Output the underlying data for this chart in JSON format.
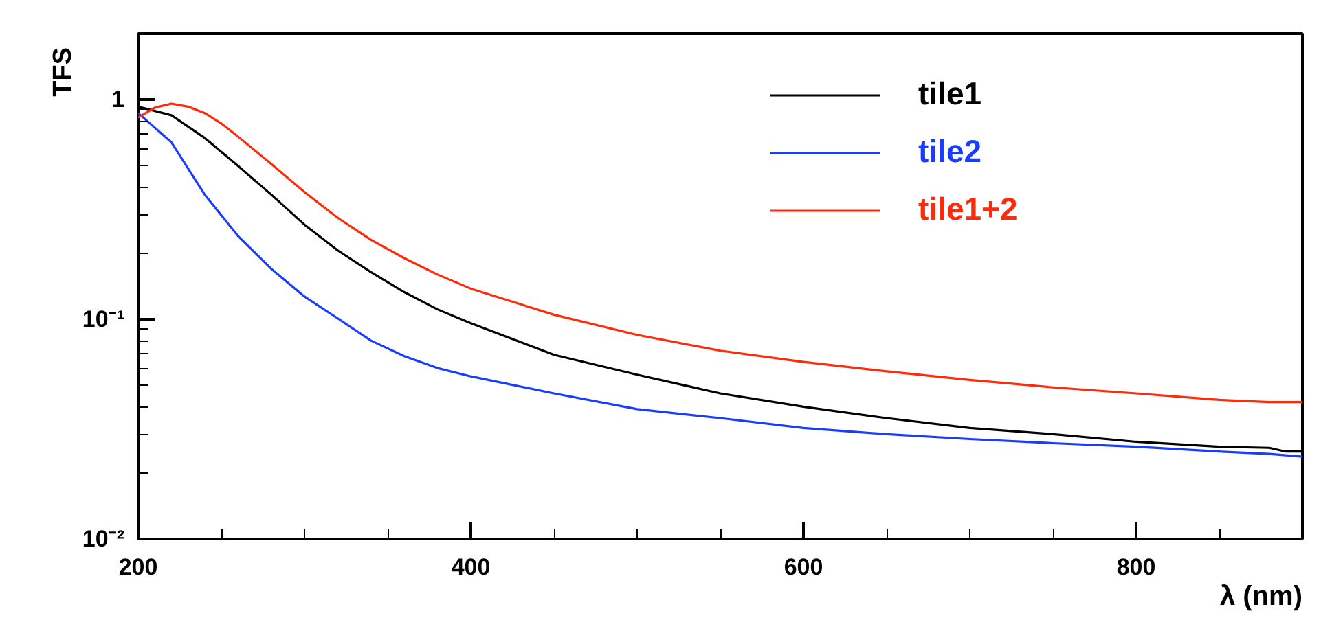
{
  "chart_data": {
    "type": "line",
    "xlabel": "λ (nm)",
    "ylabel": "TFS",
    "log": "y",
    "xlim": [
      200,
      900
    ],
    "ylim": [
      0.01,
      2
    ],
    "xticks": [
      200,
      400,
      600,
      800
    ],
    "yticks": [
      {
        "value": 0.01,
        "label": "10⁻²"
      },
      {
        "value": 0.1,
        "label": "10⁻¹"
      },
      1
    ],
    "grid": false,
    "legend": "top right",
    "marker": "none",
    "line_style": "solid",
    "series": [
      {
        "name": "tile1",
        "color": "#000000",
        "x": [
          200,
          220,
          240,
          260,
          280,
          300,
          320,
          340,
          360,
          380,
          400,
          450,
          500,
          550,
          600,
          650,
          700,
          750,
          800,
          850,
          880,
          890,
          900
        ],
        "values": [
          0.93,
          0.85,
          0.67,
          0.5,
          0.37,
          0.27,
          0.206,
          0.164,
          0.133,
          0.111,
          0.096,
          0.069,
          0.056,
          0.046,
          0.04,
          0.0355,
          0.032,
          0.03,
          0.0277,
          0.0263,
          0.026,
          0.025,
          0.025
        ]
      },
      {
        "name": "tile2",
        "color": "#1a3cff",
        "x": [
          200,
          220,
          240,
          260,
          280,
          300,
          320,
          340,
          360,
          380,
          400,
          450,
          500,
          550,
          600,
          650,
          700,
          750,
          800,
          850,
          880,
          900
        ],
        "values": [
          0.87,
          0.64,
          0.37,
          0.24,
          0.17,
          0.127,
          0.101,
          0.08,
          0.068,
          0.06,
          0.055,
          0.046,
          0.039,
          0.0355,
          0.032,
          0.03,
          0.0285,
          0.0273,
          0.0263,
          0.025,
          0.0244,
          0.0237
        ]
      },
      {
        "name": "tile1+2",
        "color": "#ff2a0a",
        "x": [
          200,
          210,
          220,
          230,
          240,
          250,
          260,
          280,
          300,
          320,
          340,
          360,
          380,
          400,
          450,
          500,
          550,
          600,
          650,
          700,
          750,
          800,
          850,
          880,
          900
        ],
        "values": [
          0.83,
          0.92,
          0.96,
          0.93,
          0.87,
          0.78,
          0.68,
          0.51,
          0.38,
          0.29,
          0.23,
          0.19,
          0.16,
          0.138,
          0.105,
          0.085,
          0.072,
          0.064,
          0.058,
          0.053,
          0.049,
          0.046,
          0.043,
          0.042,
          0.042
        ]
      }
    ]
  }
}
